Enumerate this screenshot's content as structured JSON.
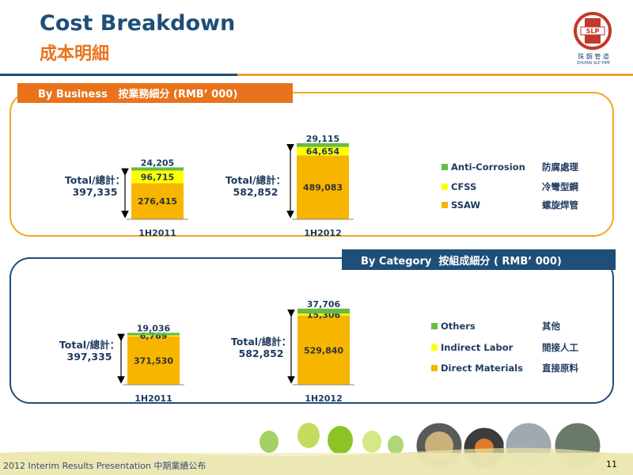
{
  "header": {
    "title_en": "Cost Breakdown",
    "title_zh": "成本明細",
    "logo_text": "珠 鋼 管 道",
    "logo_subtext": "ZHUHAI SLP PIPE",
    "logo_badge": "SLP"
  },
  "colors": {
    "navy": "#1f4e79",
    "orange": "#e8731c",
    "bar_orange": "#f7b500",
    "bar_yellow": "#ffff00",
    "bar_green": "#66bb44"
  },
  "chart_data": [
    {
      "type": "bar",
      "stacked": true,
      "section_label": "By Business   按業務細分 (RMB’ 000)",
      "categories": [
        "1H2011",
        "1H2012"
      ],
      "series": [
        {
          "name": "SSAW",
          "name_zh": "螺旋焊管",
          "color": "#f7b500",
          "values": [
            276415,
            489083
          ],
          "labels": [
            "276,415",
            "489,083"
          ]
        },
        {
          "name": "CFSS",
          "name_zh": "冷彎型鋼",
          "color": "#ffff00",
          "values": [
            96715,
            64654
          ],
          "labels": [
            "96,715",
            "64,654"
          ]
        },
        {
          "name": "Anti-Corrosion",
          "name_zh": "防腐處理",
          "color": "#66bb44",
          "values": [
            24205,
            29115
          ],
          "labels": [
            "24,205",
            "29,115"
          ]
        }
      ],
      "totals": [
        {
          "label": "Total/總計：",
          "value": "397,335"
        },
        {
          "label": "Total/總計：",
          "value": "582,852"
        }
      ]
    },
    {
      "type": "bar",
      "stacked": true,
      "section_label": "By Category  按組成細分 ( RMB’ 000)",
      "categories": [
        "1H2011",
        "1H2012"
      ],
      "series": [
        {
          "name": "Direct Materials",
          "name_zh": "直接原料",
          "color": "#f7b500",
          "values": [
            371530,
            529840
          ],
          "labels": [
            "371,530",
            "529,840"
          ]
        },
        {
          "name": "Indirect Labor",
          "name_zh": "間接人工",
          "color": "#ffff00",
          "values": [
            6769,
            15306
          ],
          "labels": [
            "6,769",
            "15,306"
          ]
        },
        {
          "name": "Others",
          "name_zh": "其他",
          "color": "#66bb44",
          "values": [
            19036,
            37706
          ],
          "labels": [
            "19,036",
            "37,706"
          ]
        }
      ],
      "totals": [
        {
          "label": "Total/總計：",
          "value": "397,335"
        },
        {
          "label": "Total/總計：",
          "value": "582,852"
        }
      ]
    }
  ],
  "footer": {
    "text": "2012 Interim Results Presentation   中期業績公布",
    "page": "11"
  }
}
